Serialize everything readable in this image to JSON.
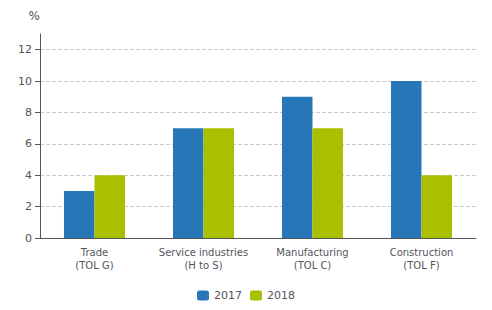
{
  "chart_data": {
    "type": "bar",
    "ylabel": "%",
    "categories": [
      "Trade\n(TOL G)",
      "Service industries\n(H to S)",
      "Manufacturing\n(TOL C)",
      "Construction\n(TOL F)"
    ],
    "series": [
      {
        "name": "2017",
        "color": "#2776b8",
        "values": [
          3,
          7,
          9,
          10
        ]
      },
      {
        "name": "2018",
        "color": "#aabf00",
        "values": [
          4,
          7,
          7,
          4
        ]
      }
    ],
    "ylim": [
      0,
      13
    ],
    "yticks": [
      0,
      2,
      4,
      6,
      8,
      10,
      12
    ],
    "grid": true,
    "legend": "bottom"
  }
}
